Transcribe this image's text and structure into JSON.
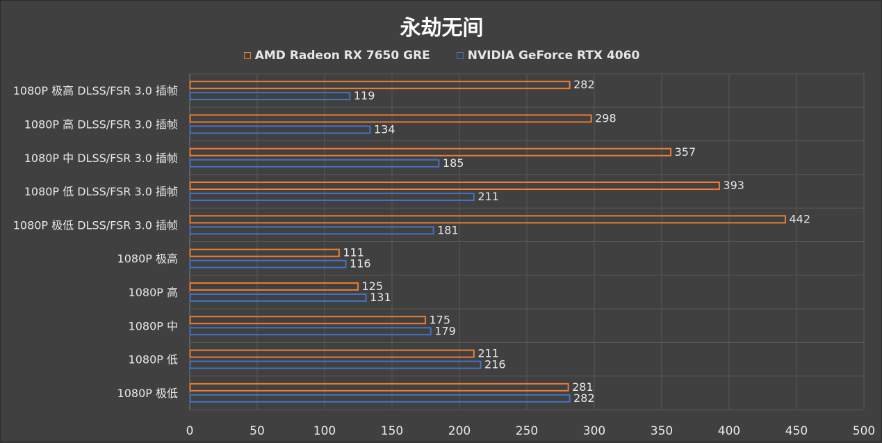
{
  "chart_data": {
    "type": "bar",
    "orientation": "horizontal",
    "title": "永劫无间",
    "categories": [
      "1080P 极高 DLSS/FSR 3.0 插帧",
      "1080P 高 DLSS/FSR 3.0 插帧",
      "1080P 中 DLSS/FSR 3.0 插帧",
      "1080P 低 DLSS/FSR 3.0 插帧",
      "1080P 极低 DLSS/FSR 3.0 插帧",
      "1080P 极高",
      "1080P 高",
      "1080P 中",
      "1080P 低",
      "1080P 极低"
    ],
    "series": [
      {
        "name": "AMD Radeon RX 7650 GRE",
        "color": "#ED7D31",
        "values": [
          282,
          298,
          357,
          393,
          442,
          111,
          125,
          175,
          211,
          281
        ]
      },
      {
        "name": "NVIDIA GeForce RTX 4060",
        "color": "#4472C4",
        "values": [
          119,
          134,
          185,
          211,
          181,
          116,
          131,
          179,
          216,
          282
        ]
      }
    ],
    "xlim": [
      0,
      500
    ],
    "xticks": [
      0,
      50,
      100,
      150,
      200,
      250,
      300,
      350,
      400,
      450,
      500
    ],
    "grid": true,
    "legend_position": "top"
  }
}
